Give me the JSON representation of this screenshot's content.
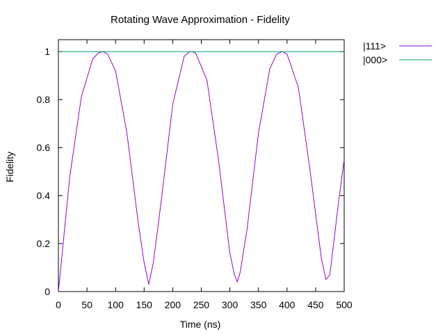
{
  "chart_data": {
    "type": "line",
    "title": "Rotating Wave Approximation - Fidelity",
    "xlabel": "Time (ns)",
    "ylabel": "Fidelity",
    "xlim": [
      0,
      500
    ],
    "ylim": [
      0,
      1.05
    ],
    "grid": false,
    "legend_position": "outside-top-right",
    "x_ticks": [
      0,
      50,
      100,
      150,
      200,
      250,
      300,
      350,
      400,
      450,
      500
    ],
    "x_tick_labels": [
      "0",
      "50",
      "100",
      "150",
      "200",
      "250",
      "300",
      "350",
      "400",
      "450",
      "500"
    ],
    "y_ticks": [
      0,
      0.2,
      0.4,
      0.6,
      0.8,
      1
    ],
    "y_tick_labels": [
      "0",
      "0.2",
      "0.4",
      "0.6",
      "0.8",
      "1"
    ],
    "series": [
      {
        "name": "|111>",
        "color": "#9400d3",
        "x": [
          0,
          20,
          40,
          60,
          70,
          78,
          86,
          100,
          120,
          140,
          150,
          158,
          166,
          180,
          200,
          220,
          228,
          234,
          240,
          260,
          280,
          300,
          308,
          313,
          318,
          330,
          350,
          370,
          382,
          392,
          400,
          420,
          440,
          460,
          468,
          475,
          490,
          500
        ],
        "values": [
          0.0,
          0.48,
          0.81,
          0.97,
          0.995,
          1.0,
          0.99,
          0.92,
          0.66,
          0.28,
          0.12,
          0.03,
          0.12,
          0.38,
          0.78,
          0.98,
          0.998,
          1.0,
          0.995,
          0.88,
          0.55,
          0.16,
          0.07,
          0.04,
          0.08,
          0.26,
          0.66,
          0.93,
          0.99,
          1.0,
          0.99,
          0.85,
          0.51,
          0.14,
          0.05,
          0.07,
          0.37,
          0.55
        ]
      },
      {
        "name": "|000>",
        "color": "#009e73",
        "x": [
          0,
          500
        ],
        "values": [
          1.0,
          1.0
        ]
      }
    ]
  }
}
